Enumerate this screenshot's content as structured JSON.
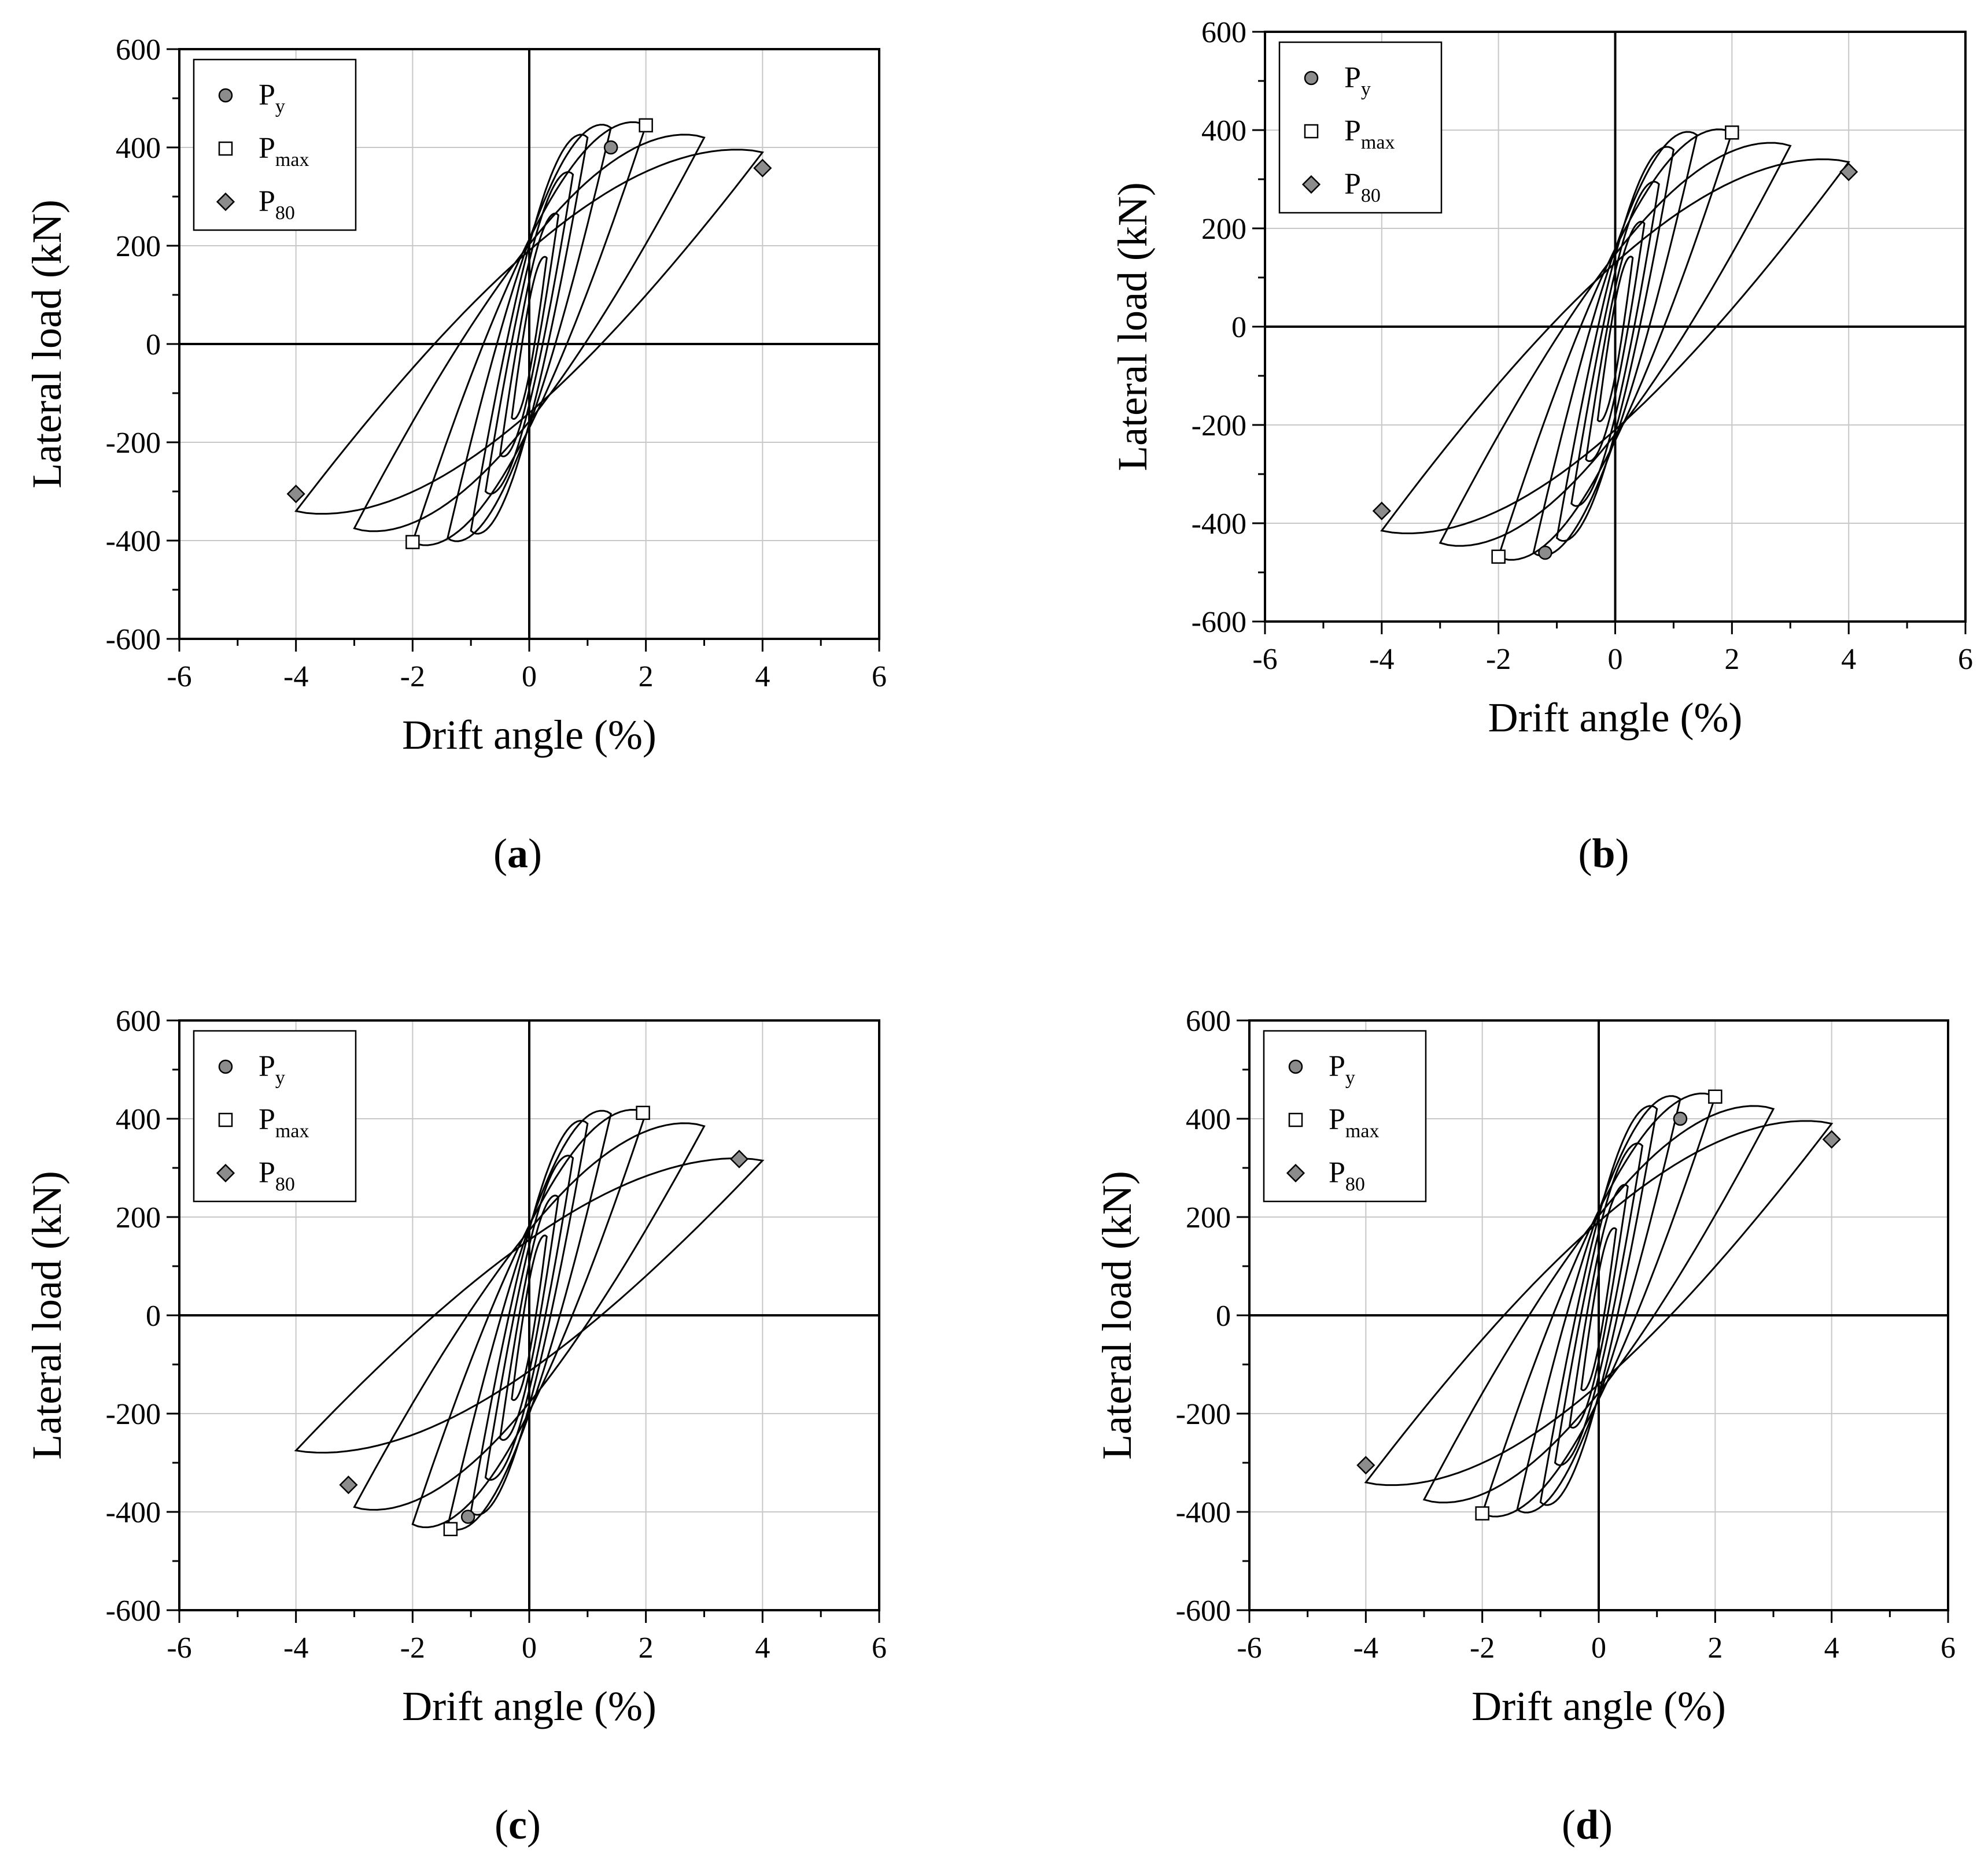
{
  "figure": {
    "panels": [
      {
        "id": "a",
        "label": "(a)"
      },
      {
        "id": "b",
        "label": "(b)"
      },
      {
        "id": "c",
        "label": "(c)"
      },
      {
        "id": "d",
        "label": "(d)"
      }
    ]
  },
  "chart_data": [
    {
      "type": "line",
      "panel": "a",
      "caption_letter": "a",
      "xlabel": "Drift angle (%)",
      "ylabel": "Lateral load (kN)",
      "xlim": [
        -6,
        6
      ],
      "ylim": [
        -600,
        600
      ],
      "xticks": [
        -6,
        -4,
        -2,
        0,
        2,
        4,
        6
      ],
      "yticks": [
        600,
        400,
        200,
        0,
        -200,
        -400,
        -600
      ],
      "grid": true,
      "legend_position": "top-left",
      "legend": [
        {
          "key": "Py",
          "base": "P",
          "sub": "y",
          "marker": "circle"
        },
        {
          "key": "Pmax",
          "base": "P",
          "sub": "max",
          "marker": "square"
        },
        {
          "key": "P80",
          "base": "P",
          "sub": "80",
          "marker": "diamond"
        }
      ],
      "markers": [
        {
          "key": "Py",
          "x": 1.4,
          "y": 400
        },
        {
          "key": "Pmax",
          "x": 2.0,
          "y": 445
        },
        {
          "key": "P80",
          "x": 4.0,
          "y": 358
        },
        {
          "key": "Pmax",
          "x": -2.0,
          "y": -403
        },
        {
          "key": "P80",
          "x": -4.0,
          "y": -305
        }
      ],
      "loops": [
        {
          "amp_pos": 0.3,
          "peak_pos": 175,
          "amp_neg": 0.3,
          "peak_neg": -150
        },
        {
          "amp_pos": 0.5,
          "peak_pos": 262,
          "amp_neg": 0.5,
          "peak_neg": -225
        },
        {
          "amp_pos": 0.75,
          "peak_pos": 345,
          "amp_neg": 0.75,
          "peak_neg": -300
        },
        {
          "amp_pos": 1.0,
          "peak_pos": 420,
          "amp_neg": 1.0,
          "peak_neg": -380
        },
        {
          "amp_pos": 1.4,
          "peak_pos": 440,
          "amp_neg": 1.4,
          "peak_neg": -395
        },
        {
          "amp_pos": 2.0,
          "peak_pos": 445,
          "amp_neg": 2.0,
          "peak_neg": -403
        },
        {
          "amp_pos": 3.0,
          "peak_pos": 420,
          "amp_neg": 3.0,
          "peak_neg": -375
        },
        {
          "amp_pos": 4.0,
          "peak_pos": 390,
          "amp_neg": 4.0,
          "peak_neg": -340
        }
      ]
    },
    {
      "type": "line",
      "panel": "b",
      "caption_letter": "b",
      "xlabel": "Drift angle (%)",
      "ylabel": "Lateral load (kN)",
      "xlim": [
        -6,
        6
      ],
      "ylim": [
        -600,
        600
      ],
      "xticks": [
        -6,
        -4,
        -2,
        0,
        2,
        4,
        6
      ],
      "yticks": [
        600,
        400,
        200,
        0,
        -200,
        -400,
        -600
      ],
      "grid": true,
      "legend_position": "top-left",
      "legend": [
        {
          "key": "Py",
          "base": "P",
          "sub": "y",
          "marker": "circle"
        },
        {
          "key": "Pmax",
          "base": "P",
          "sub": "max",
          "marker": "square"
        },
        {
          "key": "P80",
          "base": "P",
          "sub": "80",
          "marker": "diamond"
        }
      ],
      "markers": [
        {
          "key": "Pmax",
          "x": 2.0,
          "y": 395
        },
        {
          "key": "P80",
          "x": 4.0,
          "y": 315
        },
        {
          "key": "Py",
          "x": -1.2,
          "y": -460
        },
        {
          "key": "Pmax",
          "x": -2.0,
          "y": -468
        },
        {
          "key": "P80",
          "x": -4.0,
          "y": -375
        }
      ],
      "loops": [
        {
          "amp_pos": 0.3,
          "peak_pos": 140,
          "amp_neg": 0.3,
          "peak_neg": -190
        },
        {
          "amp_pos": 0.5,
          "peak_pos": 210,
          "amp_neg": 0.5,
          "peak_neg": -270
        },
        {
          "amp_pos": 0.75,
          "peak_pos": 290,
          "amp_neg": 0.75,
          "peak_neg": -360
        },
        {
          "amp_pos": 1.0,
          "peak_pos": 360,
          "amp_neg": 1.0,
          "peak_neg": -430
        },
        {
          "amp_pos": 1.4,
          "peak_pos": 390,
          "amp_neg": 1.4,
          "peak_neg": -460
        },
        {
          "amp_pos": 2.0,
          "peak_pos": 395,
          "amp_neg": 2.0,
          "peak_neg": -468
        },
        {
          "amp_pos": 3.0,
          "peak_pos": 368,
          "amp_neg": 3.0,
          "peak_neg": -440
        },
        {
          "amp_pos": 4.0,
          "peak_pos": 335,
          "amp_neg": 4.0,
          "peak_neg": -415
        }
      ]
    },
    {
      "type": "line",
      "panel": "c",
      "caption_letter": "c",
      "xlabel": "Drift angle (%)",
      "ylabel": "Lateral load (kN)",
      "xlim": [
        -6,
        6
      ],
      "ylim": [
        -600,
        600
      ],
      "xticks": [
        -6,
        -4,
        -2,
        0,
        2,
        4,
        6
      ],
      "yticks": [
        600,
        400,
        200,
        0,
        -200,
        -400,
        -600
      ],
      "grid": true,
      "legend_position": "top-left",
      "legend": [
        {
          "key": "Py",
          "base": "P",
          "sub": "y",
          "marker": "circle"
        },
        {
          "key": "Pmax",
          "base": "P",
          "sub": "max",
          "marker": "square"
        },
        {
          "key": "P80",
          "base": "P",
          "sub": "80",
          "marker": "diamond"
        }
      ],
      "markers": [
        {
          "key": "Pmax",
          "x": 1.95,
          "y": 412
        },
        {
          "key": "P80",
          "x": 3.6,
          "y": 318
        },
        {
          "key": "Py",
          "x": -1.05,
          "y": -410
        },
        {
          "key": "Pmax",
          "x": -1.35,
          "y": -435
        },
        {
          "key": "P80",
          "x": -3.1,
          "y": -345
        }
      ],
      "loops": [
        {
          "amp_pos": 0.3,
          "peak_pos": 160,
          "amp_neg": 0.3,
          "peak_neg": -170
        },
        {
          "amp_pos": 0.5,
          "peak_pos": 240,
          "amp_neg": 0.5,
          "peak_neg": -250
        },
        {
          "amp_pos": 0.75,
          "peak_pos": 320,
          "amp_neg": 0.75,
          "peak_neg": -330
        },
        {
          "amp_pos": 1.0,
          "peak_pos": 390,
          "amp_neg": 1.0,
          "peak_neg": -400
        },
        {
          "amp_pos": 1.4,
          "peak_pos": 410,
          "amp_neg": 1.4,
          "peak_neg": -430
        },
        {
          "amp_pos": 2.0,
          "peak_pos": 412,
          "amp_neg": 2.0,
          "peak_neg": -425
        },
        {
          "amp_pos": 3.0,
          "peak_pos": 385,
          "amp_neg": 3.0,
          "peak_neg": -390
        },
        {
          "amp_pos": 4.0,
          "peak_pos": 315,
          "amp_neg": 4.0,
          "peak_neg": -275
        }
      ]
    },
    {
      "type": "line",
      "panel": "d",
      "caption_letter": "d",
      "xlabel": "Drift angle (%)",
      "ylabel": "Lateral load (kN)",
      "xlim": [
        -6,
        6
      ],
      "ylim": [
        -600,
        600
      ],
      "xticks": [
        -6,
        -4,
        -2,
        0,
        2,
        4,
        6
      ],
      "yticks": [
        600,
        400,
        200,
        0,
        -200,
        -400,
        -600
      ],
      "grid": true,
      "legend_position": "top-left",
      "legend": [
        {
          "key": "Py",
          "base": "P",
          "sub": "y",
          "marker": "circle"
        },
        {
          "key": "Pmax",
          "base": "P",
          "sub": "max",
          "marker": "square"
        },
        {
          "key": "P80",
          "base": "P",
          "sub": "80",
          "marker": "diamond"
        }
      ],
      "markers": [
        {
          "key": "Py",
          "x": 1.4,
          "y": 400
        },
        {
          "key": "Pmax",
          "x": 2.0,
          "y": 445
        },
        {
          "key": "P80",
          "x": 4.0,
          "y": 358
        },
        {
          "key": "Pmax",
          "x": -2.0,
          "y": -403
        },
        {
          "key": "P80",
          "x": -4.0,
          "y": -305
        }
      ],
      "loops": [
        {
          "amp_pos": 0.3,
          "peak_pos": 175,
          "amp_neg": 0.3,
          "peak_neg": -150
        },
        {
          "amp_pos": 0.5,
          "peak_pos": 262,
          "amp_neg": 0.5,
          "peak_neg": -225
        },
        {
          "amp_pos": 0.75,
          "peak_pos": 345,
          "amp_neg": 0.75,
          "peak_neg": -300
        },
        {
          "amp_pos": 1.0,
          "peak_pos": 420,
          "amp_neg": 1.0,
          "peak_neg": -380
        },
        {
          "amp_pos": 1.4,
          "peak_pos": 440,
          "amp_neg": 1.4,
          "peak_neg": -395
        },
        {
          "amp_pos": 2.0,
          "peak_pos": 445,
          "amp_neg": 2.0,
          "peak_neg": -403
        },
        {
          "amp_pos": 3.0,
          "peak_pos": 420,
          "amp_neg": 3.0,
          "peak_neg": -375
        },
        {
          "amp_pos": 4.0,
          "peak_pos": 390,
          "amp_neg": 4.0,
          "peak_neg": -340
        }
      ]
    }
  ]
}
